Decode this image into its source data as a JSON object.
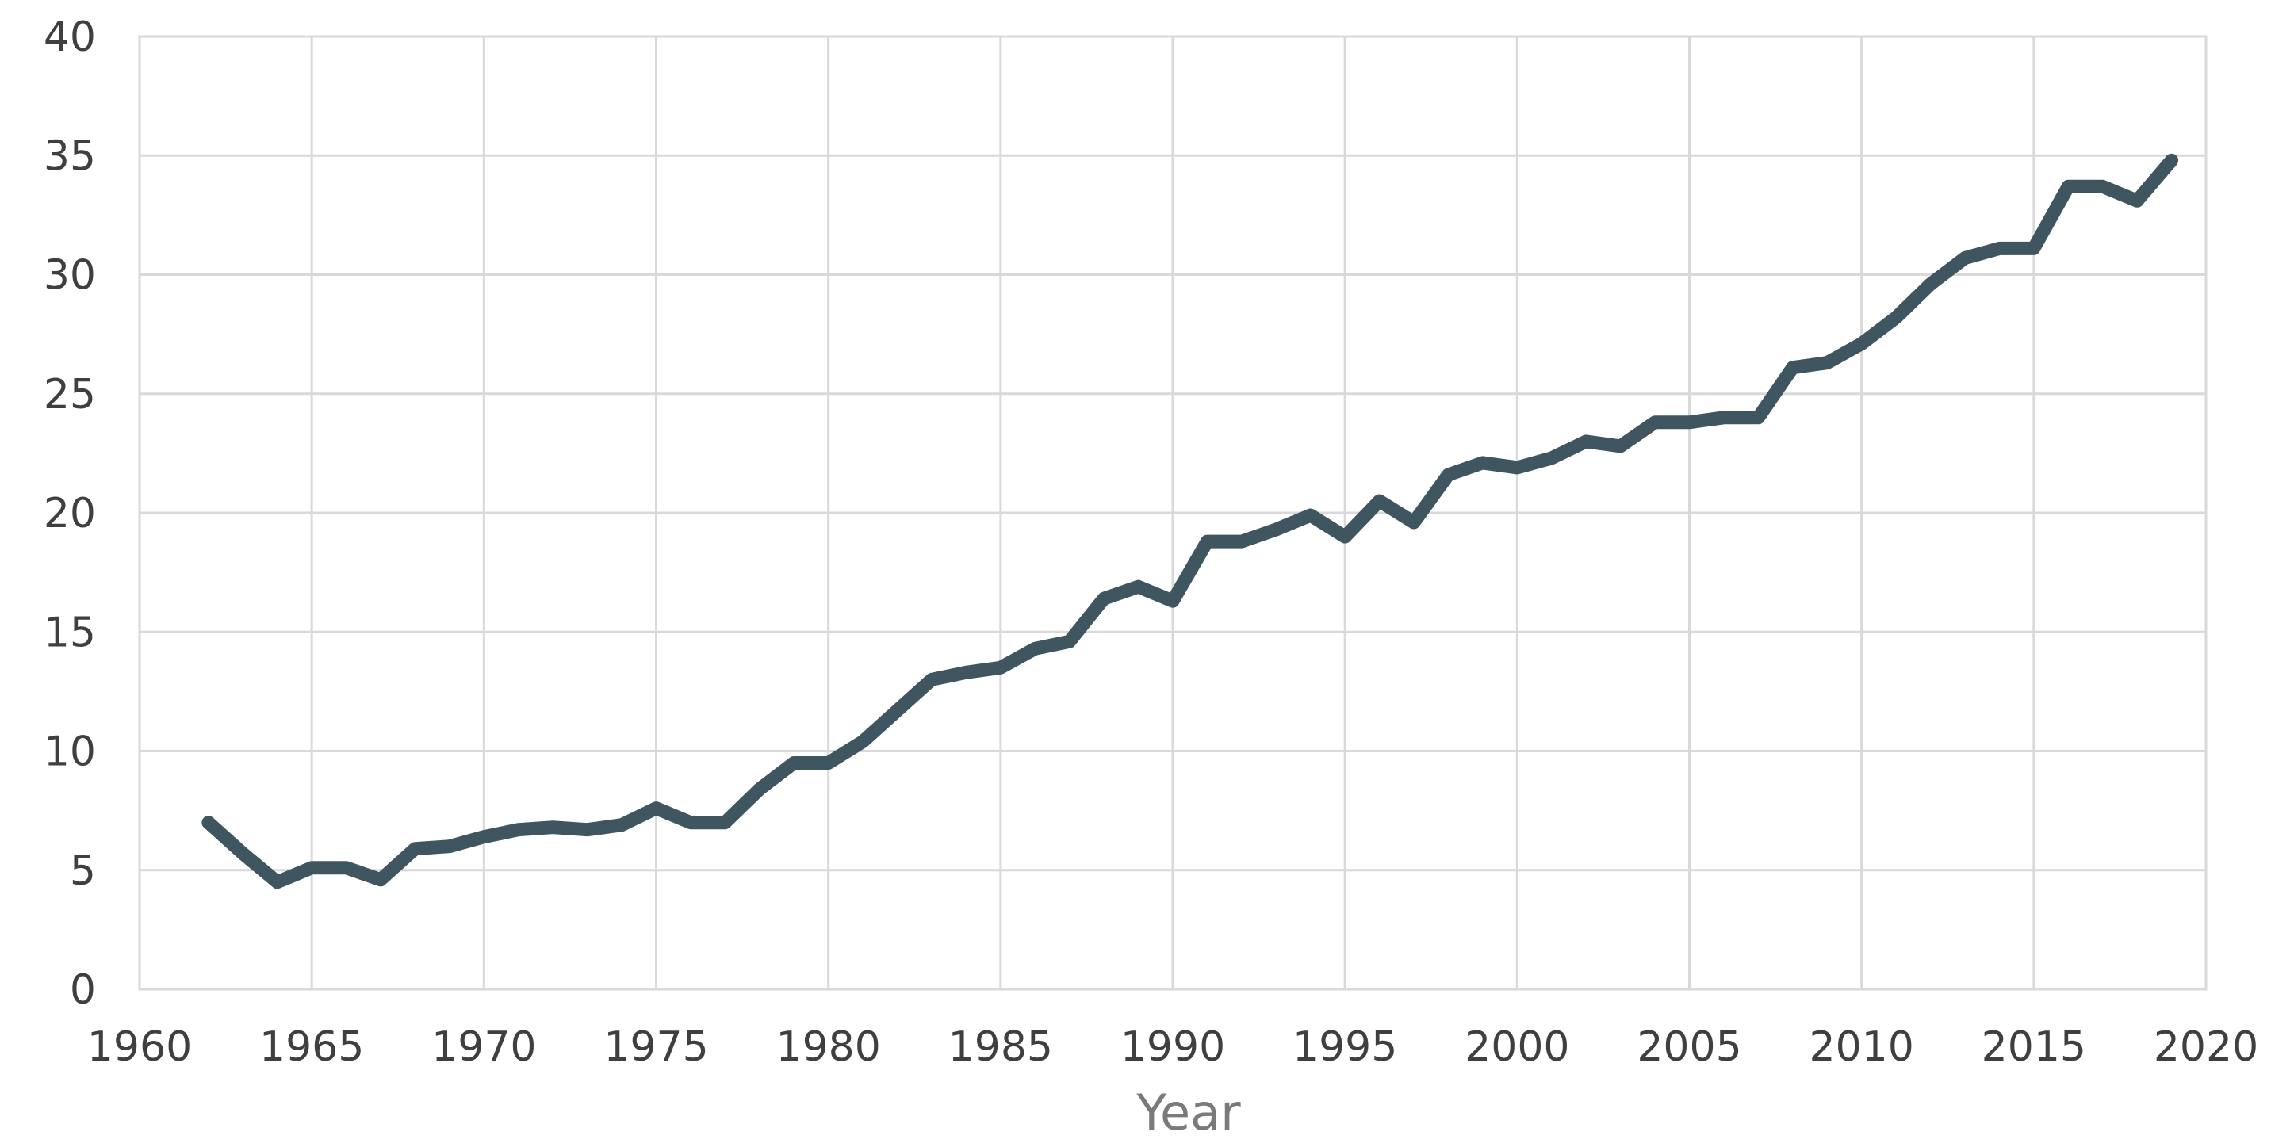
{
  "chart_data": {
    "type": "line",
    "title": "",
    "xlabel": "Year",
    "ylabel": "",
    "xlim": [
      1960,
      2020
    ],
    "ylim": [
      0,
      40
    ],
    "x_ticks": [
      1960,
      1965,
      1970,
      1975,
      1980,
      1985,
      1990,
      1995,
      2000,
      2005,
      2010,
      2015,
      2020
    ],
    "y_ticks": [
      0,
      5,
      10,
      15,
      20,
      25,
      30,
      35,
      40
    ],
    "x_tick_labels": [
      "1960",
      "1965",
      "1970",
      "1975",
      "1980",
      "1985",
      "1990",
      "1995",
      "2000",
      "2005",
      "2010",
      "2015",
      "2020"
    ],
    "y_tick_labels": [
      "0",
      "5",
      "10",
      "15",
      "20",
      "25",
      "30",
      "35",
      "40"
    ],
    "grid": true,
    "legend": "none",
    "series": [
      {
        "color": "#3f5661",
        "x": [
          1962,
          1963,
          1964,
          1965,
          1966,
          1967,
          1968,
          1969,
          1970,
          1971,
          1972,
          1973,
          1974,
          1975,
          1976,
          1977,
          1978,
          1979,
          1980,
          1981,
          1982,
          1983,
          1984,
          1985,
          1986,
          1987,
          1988,
          1989,
          1990,
          1991,
          1992,
          1993,
          1994,
          1995,
          1996,
          1997,
          1998,
          1999,
          2000,
          2001,
          2002,
          2003,
          2004,
          2005,
          2006,
          2007,
          2008,
          2009,
          2010,
          2011,
          2012,
          2013,
          2014,
          2015,
          2016,
          2017,
          2018,
          2019
        ],
        "values": [
          7.0,
          5.7,
          4.5,
          5.1,
          5.1,
          4.6,
          5.9,
          6.0,
          6.4,
          6.7,
          6.8,
          6.7,
          6.9,
          7.6,
          7.0,
          7.0,
          8.4,
          9.5,
          9.5,
          10.4,
          11.7,
          13.0,
          13.3,
          13.5,
          14.3,
          14.6,
          16.4,
          16.9,
          16.3,
          18.8,
          18.8,
          19.3,
          19.9,
          19.0,
          20.5,
          19.6,
          21.6,
          22.1,
          21.9,
          22.3,
          23.0,
          22.8,
          23.8,
          23.8,
          24.0,
          24.0,
          26.1,
          26.3,
          27.1,
          28.2,
          29.6,
          30.7,
          31.1,
          31.1,
          33.7,
          33.7,
          33.1,
          34.8
        ]
      }
    ]
  }
}
